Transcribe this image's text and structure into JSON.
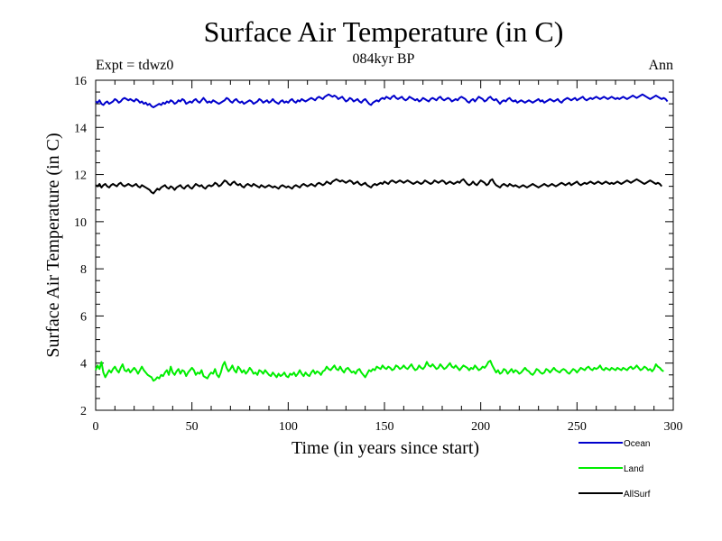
{
  "chart_data": {
    "type": "line",
    "title": "Surface Air Temperature (in C)",
    "subtitle": "084kyr BP",
    "experiment_label": "Expt = tdwz0",
    "season_label": "Ann",
    "xlabel": "Time (in years since start)",
    "ylabel": "Surface Air Temperature (in C)",
    "xlim": [
      0,
      300
    ],
    "ylim": [
      2,
      16
    ],
    "xticks": [
      0,
      50,
      100,
      150,
      200,
      250,
      300
    ],
    "yticks": [
      2,
      4,
      6,
      8,
      10,
      12,
      14,
      16
    ],
    "grid": false,
    "legend_position": "bottom-right",
    "x_step": 1,
    "series": [
      {
        "name": "Ocean",
        "color": "#0000cc",
        "values": [
          15.1,
          15.05,
          15.15,
          15.0,
          14.95,
          15.05,
          15.1,
          15.0,
          15.05,
          15.1,
          15.2,
          15.15,
          15.05,
          15.1,
          15.2,
          15.25,
          15.2,
          15.15,
          15.2,
          15.15,
          15.1,
          15.2,
          15.15,
          15.05,
          15.1,
          15.0,
          15.05,
          14.95,
          15.0,
          14.9,
          14.85,
          14.9,
          14.95,
          15.0,
          14.95,
          15.05,
          15.0,
          15.1,
          15.05,
          15.15,
          15.1,
          15.0,
          15.05,
          15.15,
          15.1,
          15.2,
          15.15,
          15.0,
          15.05,
          15.1,
          15.05,
          15.15,
          15.2,
          15.1,
          15.05,
          15.15,
          15.25,
          15.15,
          15.05,
          15.1,
          15.05,
          15.15,
          15.1,
          15.05,
          15.0,
          15.05,
          15.1,
          15.15,
          15.25,
          15.2,
          15.1,
          15.05,
          15.15,
          15.2,
          15.1,
          15.05,
          15.1,
          15.0,
          15.05,
          15.1,
          15.15,
          15.1,
          15.0,
          15.05,
          15.1,
          15.2,
          15.15,
          15.05,
          15.1,
          15.15,
          15.05,
          15.1,
          15.2,
          15.1,
          15.05,
          15.0,
          15.1,
          15.15,
          15.05,
          15.1,
          15.05,
          15.15,
          15.2,
          15.1,
          15.05,
          15.15,
          15.1,
          15.2,
          15.15,
          15.1,
          15.15,
          15.2,
          15.25,
          15.2,
          15.15,
          15.25,
          15.3,
          15.25,
          15.2,
          15.3,
          15.35,
          15.4,
          15.35,
          15.3,
          15.35,
          15.3,
          15.2,
          15.25,
          15.3,
          15.2,
          15.1,
          15.15,
          15.25,
          15.2,
          15.1,
          15.15,
          15.2,
          15.1,
          15.05,
          15.15,
          15.2,
          15.1,
          15.0,
          14.95,
          15.05,
          15.1,
          15.15,
          15.1,
          15.2,
          15.25,
          15.2,
          15.3,
          15.25,
          15.2,
          15.3,
          15.35,
          15.25,
          15.2,
          15.25,
          15.3,
          15.2,
          15.15,
          15.2,
          15.3,
          15.25,
          15.2,
          15.15,
          15.2,
          15.1,
          15.15,
          15.25,
          15.2,
          15.15,
          15.1,
          15.2,
          15.25,
          15.2,
          15.15,
          15.25,
          15.3,
          15.2,
          15.15,
          15.2,
          15.25,
          15.2,
          15.1,
          15.15,
          15.2,
          15.15,
          15.25,
          15.3,
          15.25,
          15.2,
          15.1,
          15.05,
          15.15,
          15.2,
          15.1,
          15.2,
          15.3,
          15.25,
          15.2,
          15.1,
          15.15,
          15.25,
          15.3,
          15.2,
          15.15,
          15.2,
          15.1,
          15.0,
          15.1,
          15.15,
          15.1,
          15.2,
          15.25,
          15.15,
          15.1,
          15.15,
          15.05,
          15.1,
          15.15,
          15.1,
          15.05,
          15.1,
          15.15,
          15.1,
          15.05,
          15.1,
          15.15,
          15.2,
          15.1,
          15.15,
          15.05,
          15.1,
          15.15,
          15.2,
          15.15,
          15.1,
          15.15,
          15.2,
          15.1,
          15.05,
          15.15,
          15.2,
          15.25,
          15.2,
          15.15,
          15.2,
          15.25,
          15.15,
          15.2,
          15.25,
          15.3,
          15.2,
          15.15,
          15.2,
          15.25,
          15.2,
          15.25,
          15.3,
          15.25,
          15.2,
          15.25,
          15.3,
          15.25,
          15.2,
          15.25,
          15.3,
          15.25,
          15.2,
          15.25,
          15.2,
          15.25,
          15.3,
          15.25,
          15.2,
          15.25,
          15.3,
          15.35,
          15.3,
          15.25,
          15.3,
          15.35,
          15.4,
          15.35,
          15.3,
          15.25,
          15.2,
          15.25,
          15.3,
          15.35,
          15.3,
          15.25,
          15.2,
          15.25,
          15.2,
          15.1
        ]
      },
      {
        "name": "Land",
        "color": "#00ee00",
        "values": [
          3.7,
          3.9,
          3.75,
          4.05,
          3.6,
          3.4,
          3.55,
          3.7,
          3.6,
          3.75,
          3.85,
          3.7,
          3.6,
          3.8,
          3.95,
          3.7,
          3.65,
          3.75,
          3.6,
          3.7,
          3.8,
          3.7,
          3.55,
          3.7,
          3.85,
          3.7,
          3.6,
          3.5,
          3.45,
          3.4,
          3.25,
          3.3,
          3.4,
          3.35,
          3.5,
          3.45,
          3.6,
          3.7,
          3.5,
          3.85,
          3.6,
          3.5,
          3.65,
          3.75,
          3.55,
          3.7,
          3.65,
          3.45,
          3.6,
          3.7,
          3.8,
          3.7,
          3.5,
          3.6,
          3.55,
          3.7,
          3.45,
          3.4,
          3.35,
          3.5,
          3.6,
          3.55,
          3.75,
          3.5,
          3.4,
          3.6,
          3.9,
          4.05,
          3.8,
          3.65,
          3.75,
          3.9,
          3.7,
          3.6,
          3.85,
          3.75,
          3.6,
          3.7,
          3.55,
          3.65,
          3.8,
          3.7,
          3.55,
          3.6,
          3.5,
          3.7,
          3.65,
          3.55,
          3.7,
          3.6,
          3.5,
          3.45,
          3.6,
          3.5,
          3.4,
          3.55,
          3.45,
          3.5,
          3.6,
          3.45,
          3.4,
          3.55,
          3.5,
          3.6,
          3.45,
          3.55,
          3.7,
          3.55,
          3.45,
          3.6,
          3.5,
          3.45,
          3.6,
          3.7,
          3.55,
          3.65,
          3.6,
          3.5,
          3.65,
          3.7,
          3.85,
          3.75,
          3.7,
          3.8,
          3.9,
          3.75,
          3.7,
          3.85,
          3.7,
          3.6,
          3.75,
          3.8,
          3.7,
          3.6,
          3.65,
          3.55,
          3.7,
          3.75,
          3.6,
          3.5,
          3.4,
          3.55,
          3.7,
          3.65,
          3.75,
          3.7,
          3.85,
          3.8,
          3.75,
          3.9,
          3.8,
          3.75,
          3.85,
          3.8,
          3.7,
          3.75,
          3.9,
          3.85,
          3.75,
          3.8,
          3.9,
          3.8,
          3.75,
          3.85,
          3.95,
          3.8,
          3.7,
          3.75,
          3.9,
          3.8,
          3.75,
          3.85,
          4.05,
          3.9,
          3.85,
          3.95,
          3.85,
          3.75,
          3.8,
          3.95,
          3.85,
          3.75,
          3.8,
          3.9,
          4.0,
          3.85,
          3.8,
          3.9,
          3.8,
          3.7,
          3.8,
          3.9,
          3.85,
          3.8,
          3.7,
          3.8,
          3.75,
          3.9,
          3.8,
          3.7,
          3.75,
          3.85,
          3.8,
          3.9,
          4.05,
          4.1,
          3.9,
          3.75,
          3.6,
          3.7,
          3.55,
          3.6,
          3.75,
          3.7,
          3.55,
          3.65,
          3.75,
          3.6,
          3.7,
          3.65,
          3.55,
          3.6,
          3.7,
          3.8,
          3.7,
          3.65,
          3.55,
          3.5,
          3.6,
          3.75,
          3.7,
          3.6,
          3.55,
          3.6,
          3.75,
          3.7,
          3.6,
          3.7,
          3.8,
          3.7,
          3.65,
          3.6,
          3.7,
          3.75,
          3.7,
          3.6,
          3.55,
          3.65,
          3.75,
          3.7,
          3.6,
          3.7,
          3.8,
          3.75,
          3.7,
          3.8,
          3.85,
          3.75,
          3.7,
          3.8,
          3.75,
          3.8,
          3.9,
          3.75,
          3.7,
          3.8,
          3.75,
          3.7,
          3.8,
          3.75,
          3.7,
          3.8,
          3.75,
          3.7,
          3.8,
          3.75,
          3.7,
          3.8,
          3.85,
          3.75,
          3.8,
          3.9,
          3.8,
          3.7,
          3.75,
          3.85,
          3.8,
          3.7,
          3.75,
          3.65,
          3.75,
          3.95,
          3.85,
          3.8,
          3.7,
          3.65
        ]
      },
      {
        "name": "AllSurf",
        "color": "#000000",
        "values": [
          11.55,
          11.5,
          11.6,
          11.45,
          11.55,
          11.6,
          11.5,
          11.45,
          11.55,
          11.6,
          11.55,
          11.5,
          11.6,
          11.65,
          11.55,
          11.5,
          11.55,
          11.6,
          11.55,
          11.5,
          11.55,
          11.6,
          11.5,
          11.45,
          11.55,
          11.5,
          11.45,
          11.4,
          11.35,
          11.25,
          11.2,
          11.3,
          11.4,
          11.35,
          11.45,
          11.5,
          11.55,
          11.45,
          11.4,
          11.5,
          11.45,
          11.35,
          11.45,
          11.5,
          11.55,
          11.45,
          11.4,
          11.5,
          11.55,
          11.45,
          11.4,
          11.5,
          11.6,
          11.55,
          11.5,
          11.55,
          11.45,
          11.4,
          11.5,
          11.55,
          11.5,
          11.55,
          11.65,
          11.6,
          11.5,
          11.55,
          11.65,
          11.75,
          11.7,
          11.6,
          11.55,
          11.65,
          11.7,
          11.6,
          11.55,
          11.6,
          11.5,
          11.45,
          11.55,
          11.6,
          11.55,
          11.5,
          11.6,
          11.55,
          11.5,
          11.45,
          11.55,
          11.5,
          11.45,
          11.5,
          11.55,
          11.5,
          11.45,
          11.5,
          11.45,
          11.4,
          11.5,
          11.55,
          11.5,
          11.45,
          11.5,
          11.45,
          11.4,
          11.5,
          11.55,
          11.5,
          11.45,
          11.55,
          11.6,
          11.55,
          11.5,
          11.55,
          11.6,
          11.55,
          11.5,
          11.6,
          11.65,
          11.6,
          11.55,
          11.6,
          11.7,
          11.65,
          11.6,
          11.7,
          11.75,
          11.8,
          11.75,
          11.7,
          11.75,
          11.7,
          11.65,
          11.7,
          11.75,
          11.7,
          11.6,
          11.65,
          11.7,
          11.6,
          11.55,
          11.6,
          11.65,
          11.55,
          11.5,
          11.45,
          11.55,
          11.6,
          11.55,
          11.6,
          11.65,
          11.6,
          11.7,
          11.65,
          11.6,
          11.7,
          11.75,
          11.7,
          11.65,
          11.7,
          11.75,
          11.7,
          11.65,
          11.7,
          11.75,
          11.7,
          11.65,
          11.6,
          11.65,
          11.7,
          11.65,
          11.6,
          11.65,
          11.75,
          11.7,
          11.65,
          11.6,
          11.65,
          11.75,
          11.7,
          11.65,
          11.7,
          11.75,
          11.7,
          11.6,
          11.65,
          11.7,
          11.65,
          11.6,
          11.65,
          11.7,
          11.65,
          11.75,
          11.8,
          11.7,
          11.6,
          11.55,
          11.6,
          11.7,
          11.6,
          11.55,
          11.65,
          11.75,
          11.7,
          11.65,
          11.55,
          11.6,
          11.75,
          11.8,
          11.65,
          11.55,
          11.5,
          11.45,
          11.55,
          11.6,
          11.55,
          11.5,
          11.6,
          11.55,
          11.5,
          11.55,
          11.5,
          11.45,
          11.5,
          11.55,
          11.5,
          11.45,
          11.5,
          11.55,
          11.6,
          11.55,
          11.5,
          11.45,
          11.5,
          11.55,
          11.6,
          11.55,
          11.5,
          11.55,
          11.6,
          11.55,
          11.5,
          11.55,
          11.6,
          11.65,
          11.6,
          11.55,
          11.6,
          11.65,
          11.55,
          11.6,
          11.65,
          11.7,
          11.6,
          11.55,
          11.6,
          11.65,
          11.6,
          11.65,
          11.7,
          11.65,
          11.6,
          11.65,
          11.7,
          11.65,
          11.6,
          11.65,
          11.7,
          11.65,
          11.6,
          11.65,
          11.6,
          11.65,
          11.7,
          11.65,
          11.6,
          11.65,
          11.7,
          11.75,
          11.7,
          11.65,
          11.7,
          11.75,
          11.8,
          11.75,
          11.7,
          11.65,
          11.6,
          11.65,
          11.7,
          11.75,
          11.7,
          11.65,
          11.6,
          11.65,
          11.6,
          11.5
        ]
      }
    ]
  }
}
